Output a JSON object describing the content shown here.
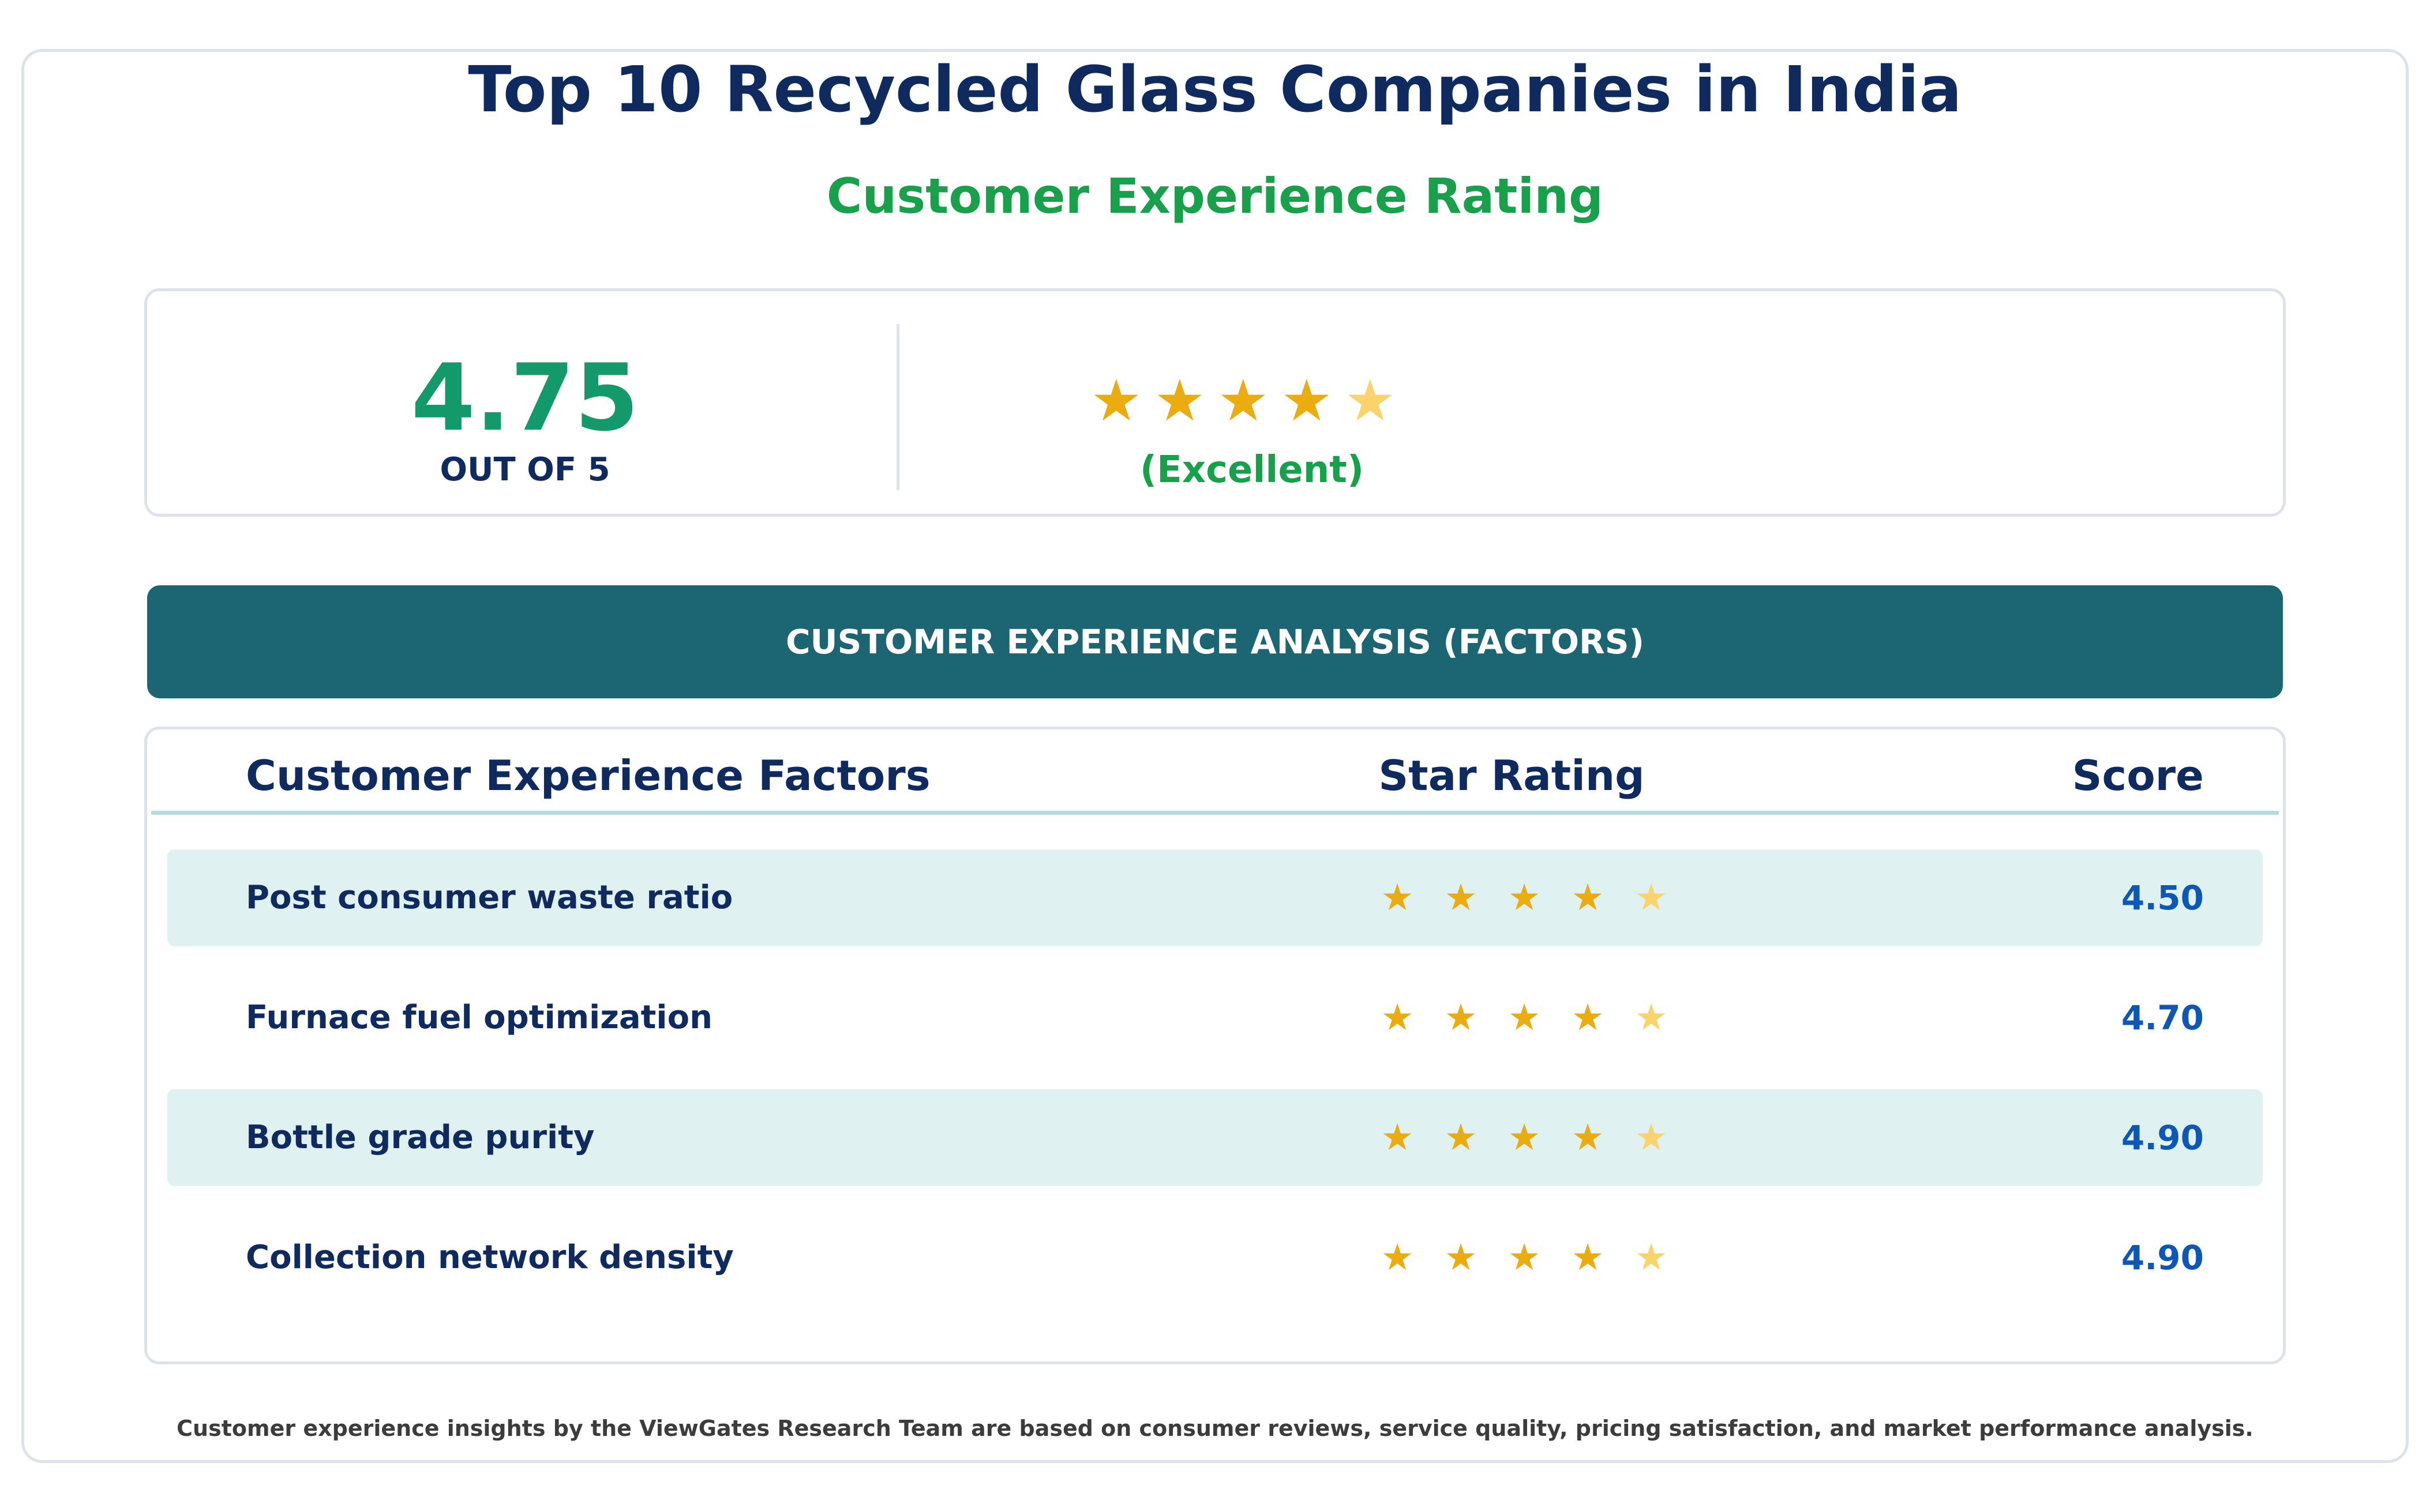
{
  "header": {
    "title": "Top 10 Recycled Glass Companies in India",
    "subtitle": "Customer Experience Rating"
  },
  "summary": {
    "score": "4.75",
    "out_of": "OUT OF 5",
    "rating_word": "(Excellent)",
    "star_icons": [
      "star-filled-icon",
      "star-filled-icon",
      "star-filled-icon",
      "star-filled-icon",
      "star-faded-icon"
    ]
  },
  "banner": {
    "label": "CUSTOMER EXPERIENCE ANALYSIS (FACTORS)"
  },
  "table": {
    "columns": [
      "Customer Experience Factors",
      "Star Rating",
      "Score"
    ],
    "rows": [
      {
        "factor": "Post consumer waste ratio",
        "score": "4.50",
        "shaded": true
      },
      {
        "factor": "Furnace fuel optimization",
        "score": "4.70",
        "shaded": false
      },
      {
        "factor": "Bottle grade purity",
        "score": "4.90",
        "shaded": true
      },
      {
        "factor": "Collection network density",
        "score": "4.90",
        "shaded": false
      }
    ],
    "row_star_icons": [
      "star-filled-icon",
      "star-filled-icon",
      "star-filled-icon",
      "star-filled-icon",
      "star-faded-icon"
    ]
  },
  "footer": {
    "note": "Customer experience insights by the ViewGates Research Team are based on consumer reviews, service quality, pricing satisfaction, and market performance analysis."
  },
  "colors": {
    "star_filled": "#eaac11",
    "star_faded": "#f9d46c",
    "row_shade": "#dff1f1",
    "banner": "#1c6674"
  }
}
